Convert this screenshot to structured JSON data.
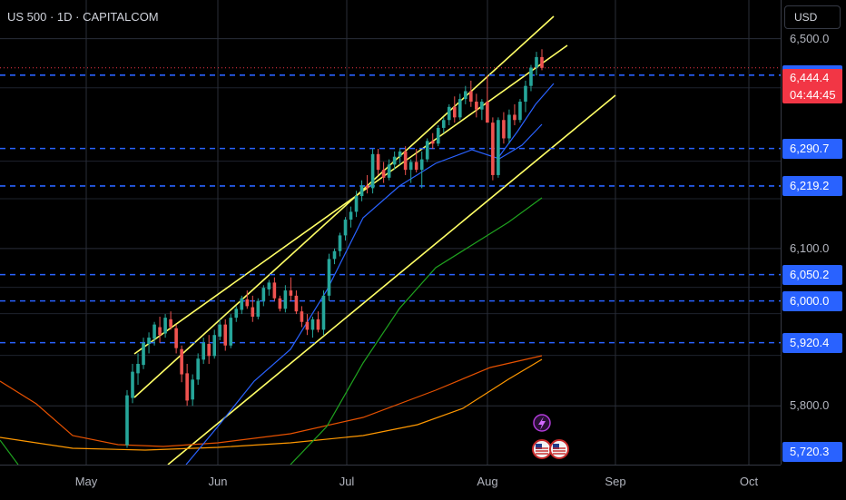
{
  "header": {
    "symbol_title": "US 500 · 1D · CAPITALCOM",
    "currency": "USD"
  },
  "last_price": {
    "price": "6,444.4",
    "countdown": "04:44:45",
    "value": 6444.4
  },
  "colors": {
    "up": "#26a69a",
    "down": "#ef5350",
    "channel": "#ffff66",
    "levels": "#2962ff",
    "ma_fast": "#2962ff",
    "ma_mid": "#1fa31f",
    "ma_slow": "#e65100",
    "ma_slowest": "#ff9800",
    "last_price": "#f23645"
  },
  "icons": [
    "lightning-icon",
    "us-flag-icon",
    "us-flag-icon"
  ],
  "chart_data": {
    "type": "candlestick",
    "title": "US 500 · 1D · CAPITALCOM",
    "y_axis_ticks": [
      "6,500.0",
      "6,100.0",
      "5,800.0"
    ],
    "x_axis_ticks": [
      "May",
      "Jun",
      "Jul",
      "Aug",
      "Sep",
      "Oct"
    ],
    "ylim": [
      5700,
      6560
    ],
    "horizontal_levels": [
      {
        "label": "6,430.6",
        "value": 6430.6
      },
      {
        "label": "6,290.7",
        "value": 6290.7
      },
      {
        "label": "6,219.2",
        "value": 6219.2
      },
      {
        "label": "6,050.2",
        "value": 6050.2
      },
      {
        "label": "6,000.0",
        "value": 6000.0
      },
      {
        "label": "5,920.4",
        "value": 5920.4
      }
    ],
    "series": [
      {
        "values": [
          [
            5725,
            5830,
            5720,
            5820
          ],
          [
            5815,
            5880,
            5805,
            5865
          ],
          [
            5862,
            5900,
            5840,
            5880
          ],
          [
            5878,
            5930,
            5870,
            5920
          ],
          [
            5918,
            5940,
            5900,
            5930
          ],
          [
            5928,
            5960,
            5915,
            5955
          ],
          [
            5950,
            5970,
            5920,
            5935
          ],
          [
            5938,
            5975,
            5930,
            5968
          ],
          [
            5965,
            5980,
            5945,
            5950
          ],
          [
            5948,
            5955,
            5900,
            5910
          ],
          [
            5908,
            5915,
            5845,
            5860
          ],
          [
            5862,
            5880,
            5800,
            5810
          ],
          [
            5812,
            5860,
            5800,
            5850
          ],
          [
            5850,
            5900,
            5840,
            5890
          ],
          [
            5888,
            5930,
            5880,
            5920
          ],
          [
            5918,
            5935,
            5880,
            5895
          ],
          [
            5895,
            5945,
            5890,
            5935
          ],
          [
            5932,
            5965,
            5925,
            5955
          ],
          [
            5955,
            5965,
            5905,
            5915
          ],
          [
            5915,
            5975,
            5910,
            5968
          ],
          [
            5968,
            5990,
            5960,
            5985
          ],
          [
            5983,
            6010,
            5975,
            6005
          ],
          [
            6003,
            6020,
            5985,
            5990
          ],
          [
            5988,
            6010,
            5960,
            5970
          ],
          [
            5970,
            6005,
            5965,
            6000
          ],
          [
            6000,
            6030,
            5990,
            6025
          ],
          [
            6022,
            6040,
            6010,
            6035
          ],
          [
            6035,
            6045,
            6000,
            6005
          ],
          [
            6005,
            6010,
            5980,
            5985
          ],
          [
            5985,
            6030,
            5978,
            6020
          ],
          [
            6020,
            6045,
            6000,
            6010
          ],
          [
            6010,
            6020,
            5975,
            5980
          ],
          [
            5980,
            5990,
            5950,
            5960
          ],
          [
            5960,
            5975,
            5935,
            5945
          ],
          [
            5945,
            5970,
            5930,
            5965
          ],
          [
            5965,
            5980,
            5940,
            5945
          ],
          [
            5945,
            6020,
            5935,
            6010
          ],
          [
            6010,
            6090,
            6000,
            6080
          ],
          [
            6080,
            6100,
            6070,
            6095
          ],
          [
            6095,
            6130,
            6085,
            6125
          ],
          [
            6125,
            6160,
            6115,
            6155
          ],
          [
            6155,
            6180,
            6140,
            6170
          ],
          [
            6170,
            6210,
            6160,
            6200
          ],
          [
            6200,
            6230,
            6190,
            6220
          ],
          [
            6220,
            6240,
            6205,
            6215
          ],
          [
            6215,
            6290,
            6205,
            6280
          ],
          [
            6280,
            6290,
            6240,
            6250
          ],
          [
            6250,
            6265,
            6225,
            6235
          ],
          [
            6235,
            6270,
            6230,
            6260
          ],
          [
            6260,
            6285,
            6250,
            6275
          ],
          [
            6275,
            6290,
            6260,
            6285
          ],
          [
            6285,
            6295,
            6240,
            6250
          ],
          [
            6250,
            6270,
            6225,
            6265
          ],
          [
            6265,
            6290,
            6245,
            6250
          ],
          [
            6250,
            6285,
            6215,
            6270
          ],
          [
            6270,
            6310,
            6265,
            6305
          ],
          [
            6305,
            6320,
            6290,
            6300
          ],
          [
            6300,
            6335,
            6295,
            6330
          ],
          [
            6330,
            6350,
            6320,
            6345
          ],
          [
            6345,
            6375,
            6335,
            6370
          ],
          [
            6370,
            6390,
            6340,
            6350
          ],
          [
            6350,
            6395,
            6345,
            6385
          ],
          [
            6385,
            6410,
            6375,
            6400
          ],
          [
            6400,
            6420,
            6370,
            6380
          ],
          [
            6380,
            6395,
            6350,
            6365
          ],
          [
            6365,
            6385,
            6345,
            6380
          ],
          [
            6380,
            6430,
            6360,
            6340
          ],
          [
            6340,
            6350,
            6230,
            6240
          ],
          [
            6240,
            6350,
            6235,
            6345
          ],
          [
            6345,
            6360,
            6300,
            6310
          ],
          [
            6310,
            6365,
            6300,
            6355
          ],
          [
            6355,
            6375,
            6335,
            6345
          ],
          [
            6345,
            6385,
            6340,
            6380
          ],
          [
            6380,
            6420,
            6360,
            6410
          ],
          [
            6410,
            6450,
            6400,
            6445
          ],
          [
            6445,
            6475,
            6430,
            6465
          ],
          [
            6465,
            6480,
            6440,
            6444.4
          ]
        ]
      }
    ]
  }
}
